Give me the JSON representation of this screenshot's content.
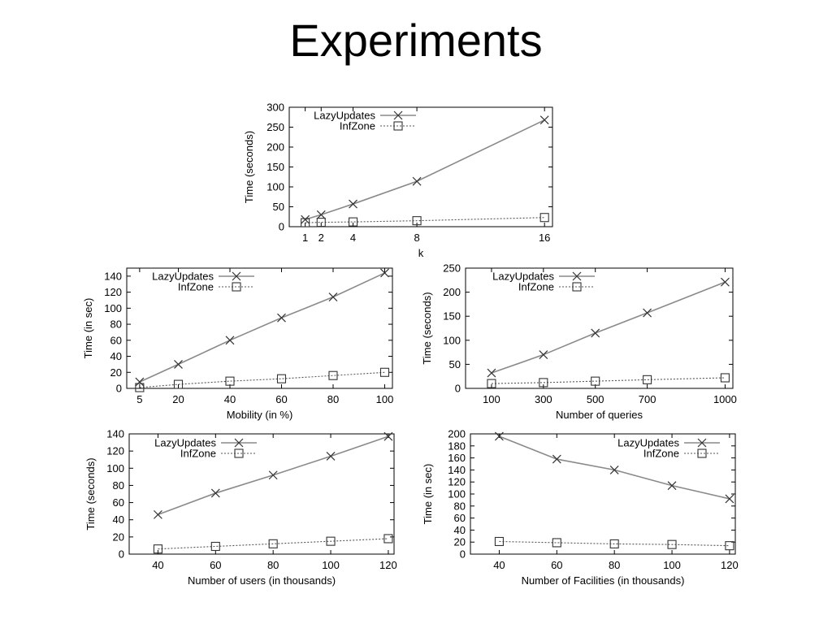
{
  "slide": {
    "title": "Experiments"
  },
  "colors": {
    "background": "#ffffff",
    "axis": "#000000",
    "lazy_line": "#8a8a8a",
    "inf_line": "#555555",
    "marker": "#333333"
  },
  "chart_data": [
    {
      "type": "line",
      "title": "",
      "xlabel": "k",
      "ylabel": "Time (seconds)",
      "x": [
        1,
        2,
        4,
        8,
        16
      ],
      "xticks": [
        1,
        2,
        4,
        8,
        16
      ],
      "xlim": [
        0,
        16.5
      ],
      "ylim": [
        0,
        300
      ],
      "yticks": [
        0,
        50,
        100,
        150,
        200,
        250,
        300
      ],
      "grid": false,
      "legend": "top-left",
      "series": [
        {
          "name": "LazyUpdates",
          "marker": "x",
          "values": [
            18,
            30,
            57,
            114,
            268
          ]
        },
        {
          "name": "InfZone",
          "marker": "square",
          "values": [
            10,
            11,
            12,
            15,
            23
          ]
        }
      ]
    },
    {
      "type": "line",
      "title": "",
      "xlabel": "Mobility (in %)",
      "ylabel": "Time (in sec)",
      "x": [
        5,
        20,
        40,
        60,
        80,
        100
      ],
      "xticks": [
        5,
        20,
        40,
        60,
        80,
        100
      ],
      "xlim": [
        0,
        103
      ],
      "ylim": [
        0,
        150
      ],
      "yticks": [
        0,
        20,
        40,
        60,
        80,
        100,
        120,
        140
      ],
      "grid": false,
      "legend": "top-left",
      "series": [
        {
          "name": "LazyUpdates",
          "marker": "x",
          "values": [
            8,
            30,
            60,
            88,
            114,
            144
          ]
        },
        {
          "name": "InfZone",
          "marker": "square",
          "values": [
            1,
            5,
            9,
            12,
            16,
            20
          ]
        }
      ]
    },
    {
      "type": "line",
      "title": "",
      "xlabel": "Number of queries",
      "ylabel": "Time (seconds)",
      "x": [
        100,
        300,
        500,
        700,
        1000
      ],
      "xticks": [
        100,
        300,
        500,
        700,
        1000
      ],
      "xlim": [
        0,
        1030
      ],
      "ylim": [
        0,
        250
      ],
      "yticks": [
        0,
        50,
        100,
        150,
        200,
        250
      ],
      "grid": false,
      "legend": "top-left",
      "series": [
        {
          "name": "LazyUpdates",
          "marker": "x",
          "values": [
            32,
            70,
            115,
            157,
            221
          ]
        },
        {
          "name": "InfZone",
          "marker": "square",
          "values": [
            10,
            12,
            15,
            18,
            22
          ]
        }
      ]
    },
    {
      "type": "line",
      "title": "",
      "xlabel": "Number of users (in thousands)",
      "ylabel": "Time (seconds)",
      "x": [
        40,
        60,
        80,
        100,
        120
      ],
      "xticks": [
        40,
        60,
        80,
        100,
        120
      ],
      "xlim": [
        30,
        122
      ],
      "ylim": [
        0,
        140
      ],
      "yticks": [
        0,
        20,
        40,
        60,
        80,
        100,
        120,
        140
      ],
      "grid": false,
      "legend": "top-left",
      "series": [
        {
          "name": "LazyUpdates",
          "marker": "x",
          "values": [
            46,
            71,
            92,
            114,
            137
          ]
        },
        {
          "name": "InfZone",
          "marker": "square",
          "values": [
            6,
            9,
            12,
            15,
            18
          ]
        }
      ]
    },
    {
      "type": "line",
      "title": "",
      "xlabel": "Number of Facilities (in thousands)",
      "ylabel": "Time (in sec)",
      "x": [
        40,
        60,
        80,
        100,
        120
      ],
      "xticks": [
        40,
        60,
        80,
        100,
        120
      ],
      "xlim": [
        30,
        122
      ],
      "ylim": [
        0,
        200
      ],
      "yticks": [
        0,
        20,
        40,
        60,
        80,
        100,
        120,
        140,
        160,
        180,
        200
      ],
      "grid": false,
      "legend": "top-right",
      "series": [
        {
          "name": "LazyUpdates",
          "marker": "x",
          "values": [
            196,
            158,
            140,
            114,
            92
          ]
        },
        {
          "name": "InfZone",
          "marker": "square",
          "values": [
            21,
            19,
            17,
            16,
            14
          ]
        }
      ]
    }
  ]
}
